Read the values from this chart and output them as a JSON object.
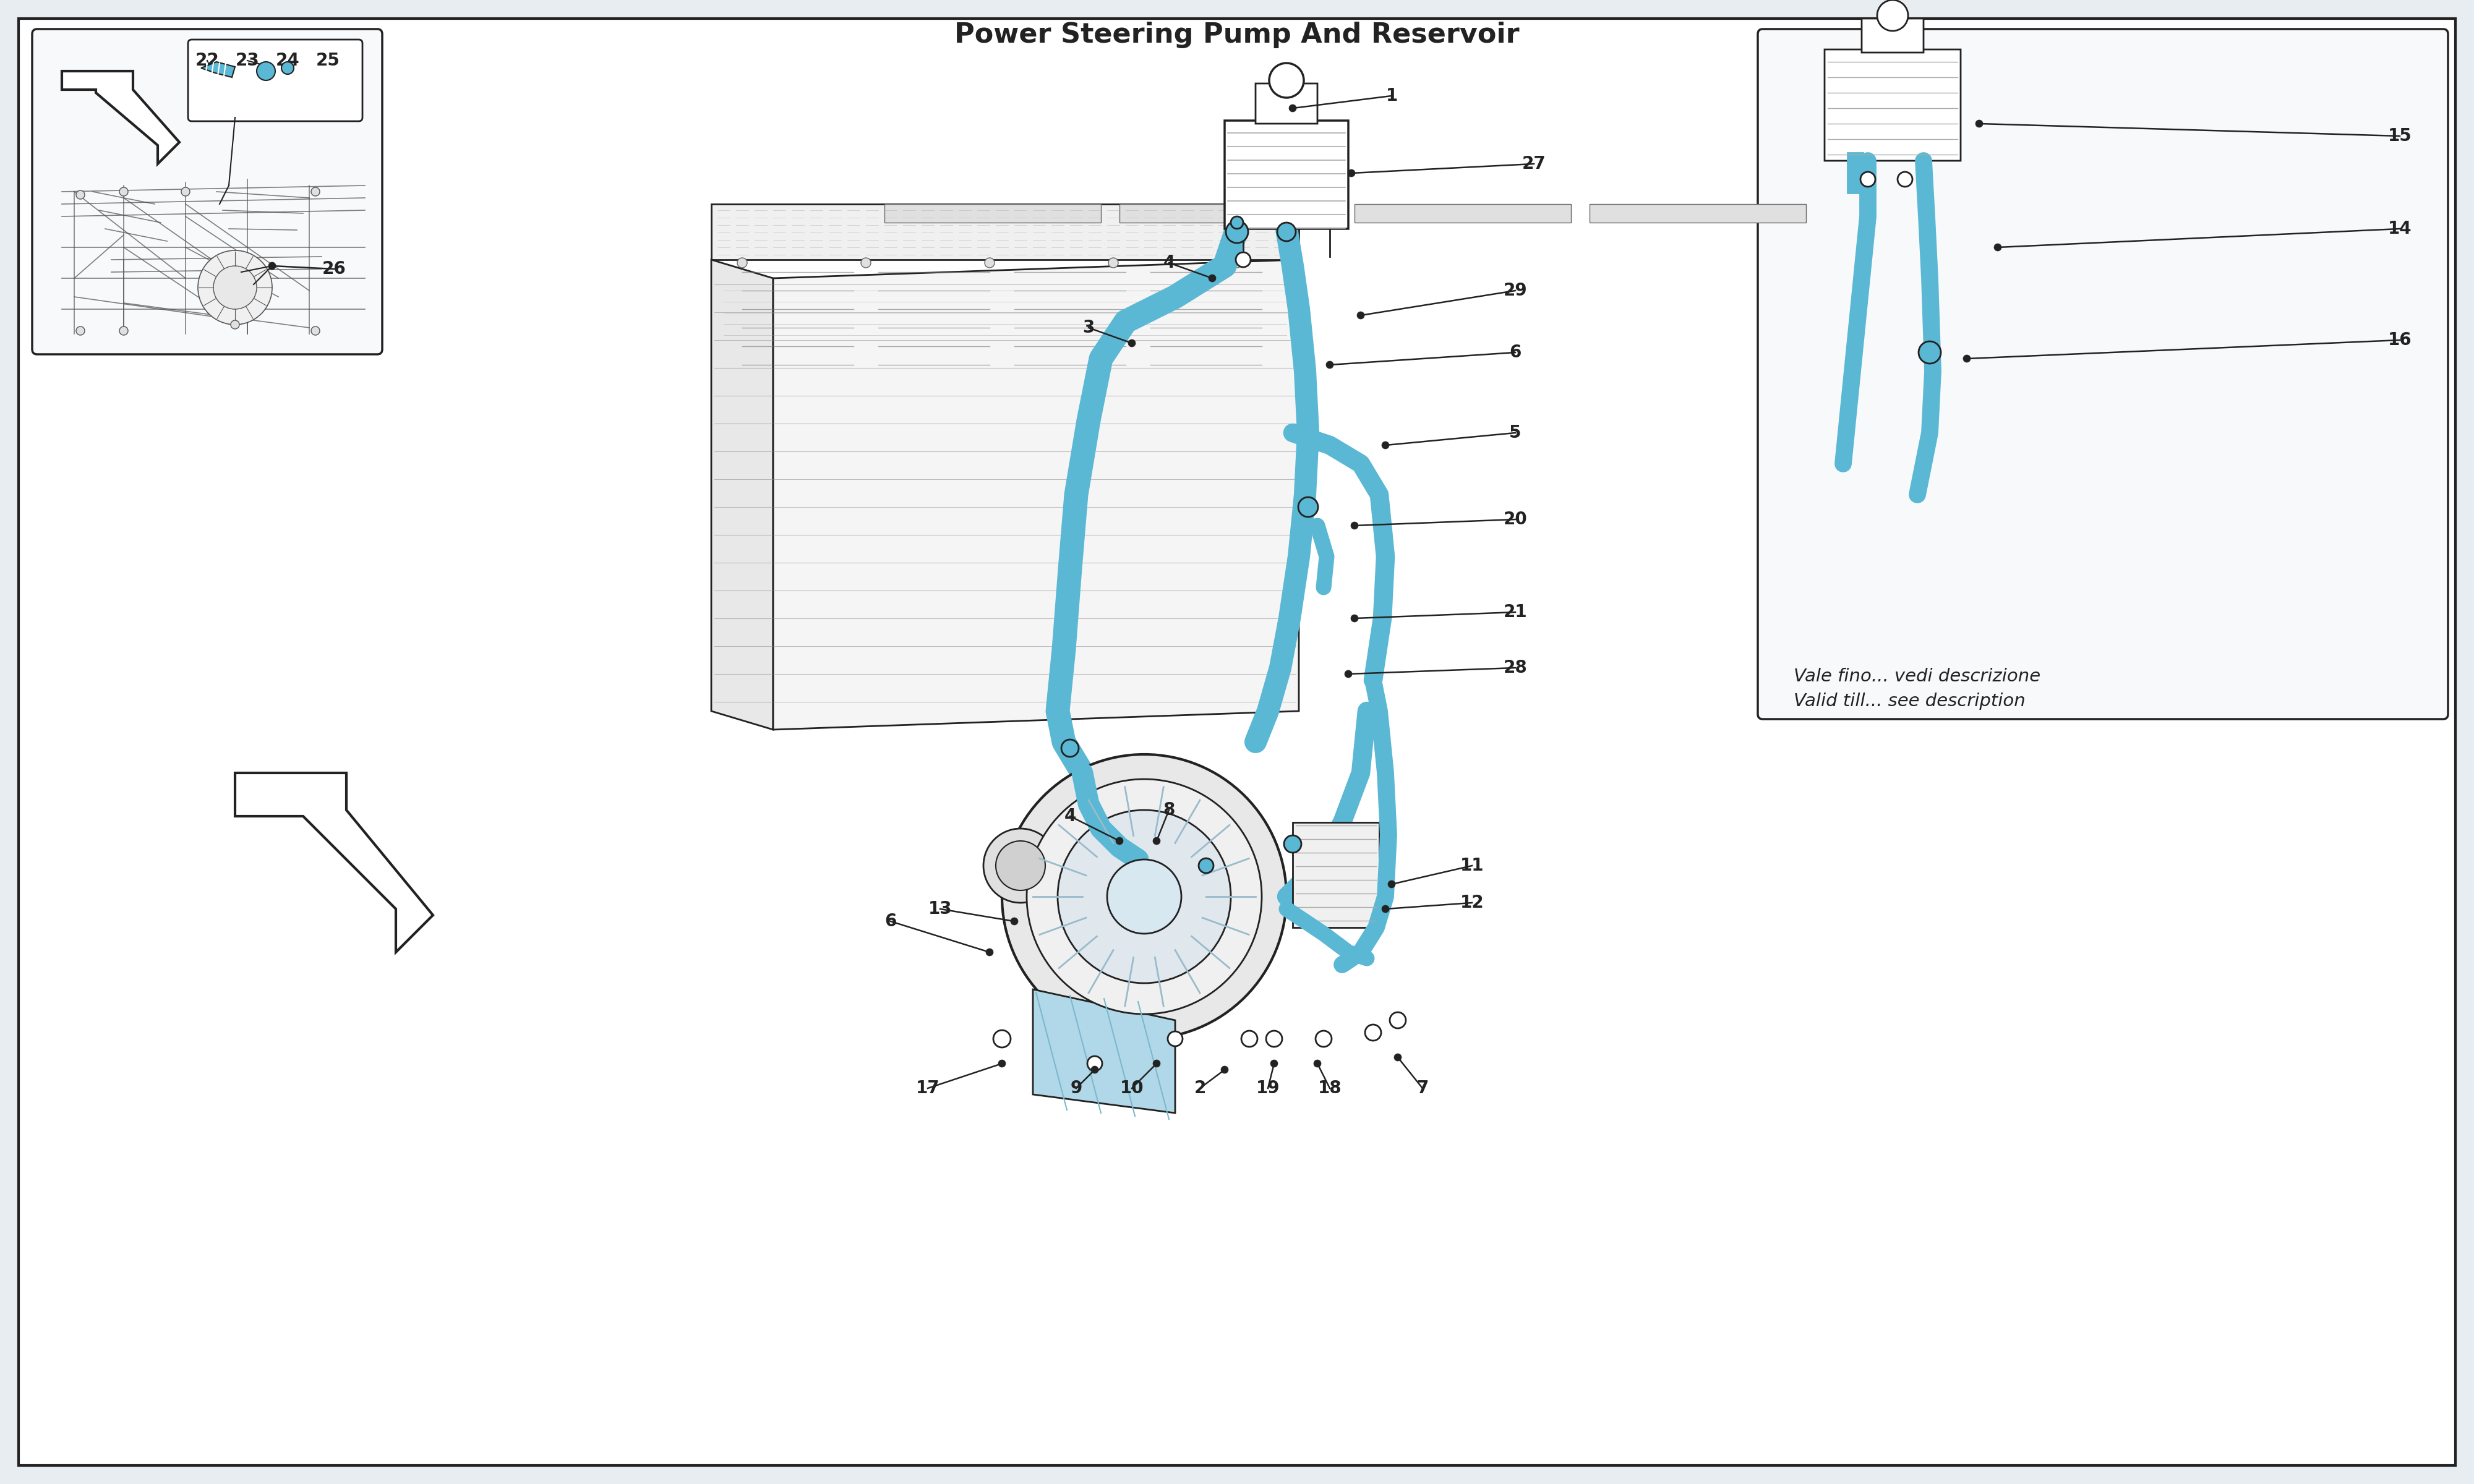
{
  "title": "Power Steering Pump And Reservoir",
  "bg_color": "#f0f4f8",
  "line_color": "#222222",
  "blue_color": "#5ab8d4",
  "blue_fill": "#7dcde0",
  "blue_dark": "#3a9ab8",
  "note_italian": "Vale fino... vedi descrizione",
  "note_english": "Valid till... see description",
  "fig_bg": "#e8edf2",
  "white": "#ffffff",
  "gray_light": "#dddddd",
  "gray_med": "#aaaaaa"
}
